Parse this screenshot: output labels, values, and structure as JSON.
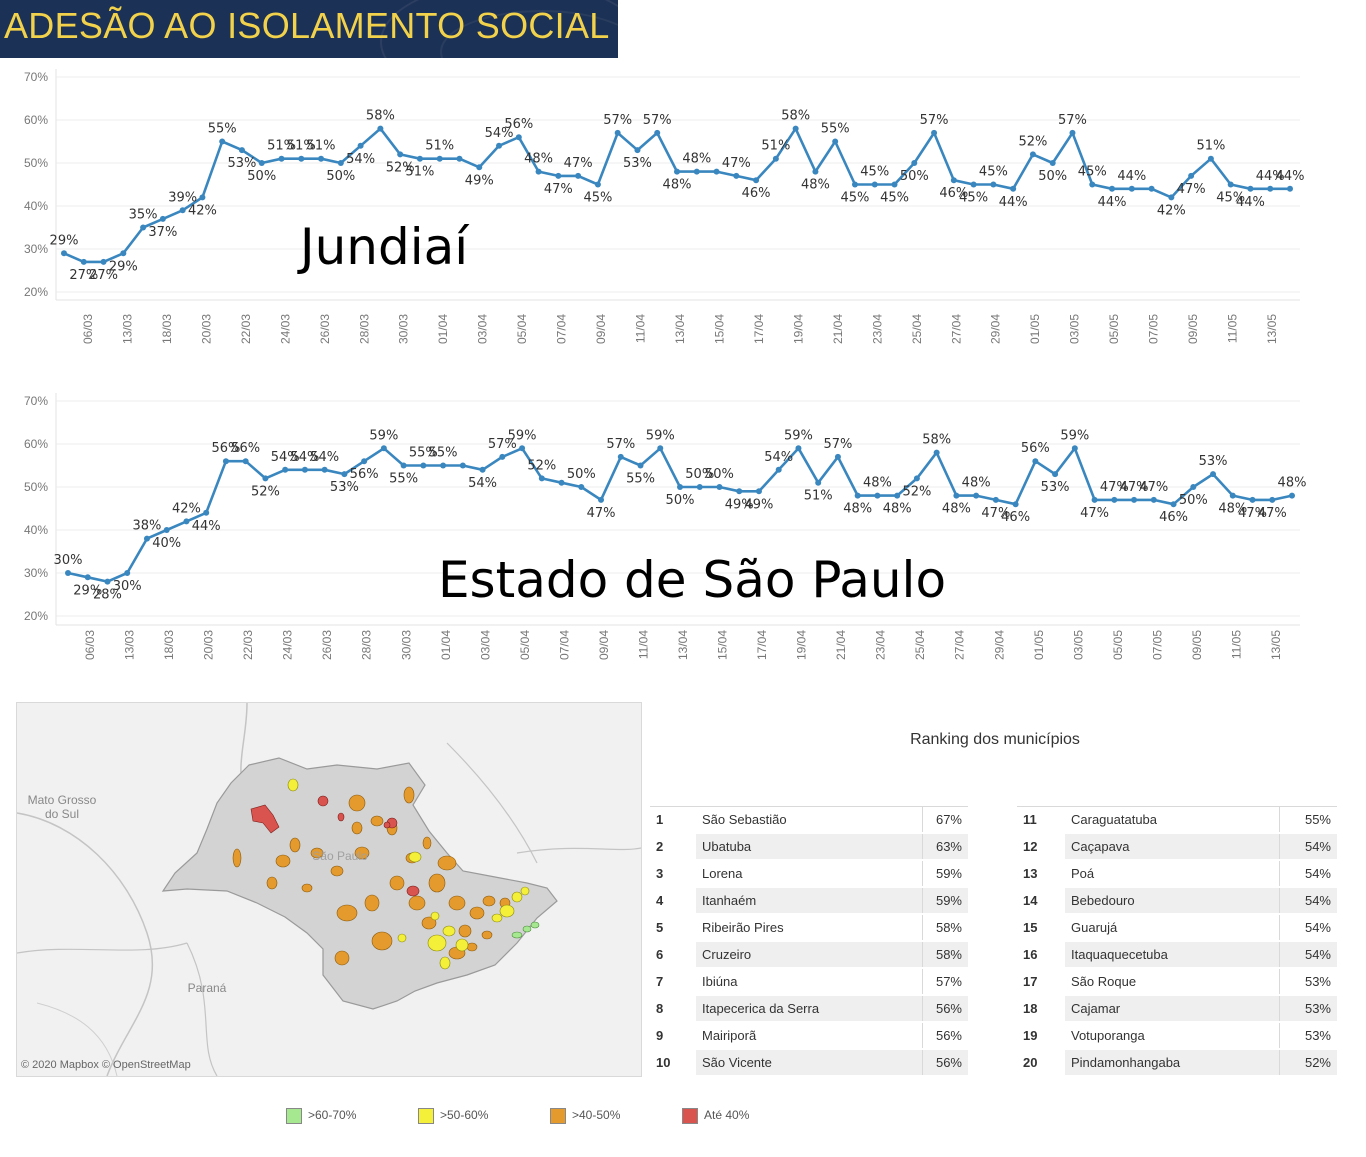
{
  "header": {
    "title": "ADESÃO AO ISOLAMENTO SOCIAL"
  },
  "colors": {
    "line": "#3a87bf",
    "header_bg": "#1c3156",
    "header_text": "#f2d24b"
  },
  "chart_data": [
    {
      "type": "line",
      "title": "Jundiaí",
      "ylim": [
        20,
        70
      ],
      "yticks": [
        "70%",
        "60%",
        "50%",
        "40%",
        "30%",
        "20%"
      ],
      "grid": true,
      "xtick_labels": [
        "06/03",
        "13/03",
        "18/03",
        "20/03",
        "22/03",
        "24/03",
        "26/03",
        "28/03",
        "30/03",
        "01/04",
        "03/04",
        "05/04",
        "07/04",
        "09/04",
        "11/04",
        "13/04",
        "15/04",
        "17/04",
        "19/04",
        "21/04",
        "23/04",
        "25/04",
        "27/04",
        "29/04",
        "01/05",
        "03/05",
        "05/05",
        "07/05",
        "09/05",
        "11/05",
        "13/05"
      ],
      "values": [
        29,
        27,
        27,
        29,
        35,
        37,
        39,
        42,
        55,
        53,
        50,
        51,
        51,
        51,
        50,
        54,
        58,
        52,
        51,
        51,
        51,
        49,
        54,
        56,
        48,
        47,
        47,
        45,
        57,
        53,
        57,
        48,
        48,
        48,
        47,
        46,
        51,
        58,
        48,
        55,
        45,
        45,
        45,
        50,
        57,
        46,
        45,
        45,
        44,
        52,
        50,
        57,
        45,
        44,
        44,
        44,
        42,
        47,
        51,
        45,
        44,
        44,
        44
      ],
      "labels": [
        "29%",
        "27%",
        "27%",
        "29%",
        "35%",
        "37%",
        "39%",
        "42%",
        "55%",
        "53%",
        "50%",
        "51%",
        "51%",
        "51%",
        "50%",
        "54%",
        "58%",
        "52%",
        "51%",
        "51%",
        "",
        "49%",
        "54%",
        "56%",
        "48%",
        "47%",
        "47%",
        "45%",
        "57%",
        "53%",
        "57%",
        "48%",
        "48%",
        "",
        "47%",
        "46%",
        "51%",
        "58%",
        "48%",
        "55%",
        "45%",
        "45%",
        "45%",
        "50%",
        "57%",
        "46%",
        "45%",
        "45%",
        "44%",
        "52%",
        "50%",
        "57%",
        "45%",
        "44%",
        "44%",
        "",
        "42%",
        "47%",
        "51%",
        "45%",
        "44%",
        "44%",
        "44%"
      ]
    },
    {
      "type": "line",
      "title": "Estado de São Paulo",
      "ylim": [
        20,
        70
      ],
      "yticks": [
        "70%",
        "60%",
        "50%",
        "40%",
        "30%",
        "20%"
      ],
      "grid": true,
      "xtick_labels": [
        "06/03",
        "13/03",
        "18/03",
        "20/03",
        "22/03",
        "24/03",
        "26/03",
        "28/03",
        "30/03",
        "01/04",
        "03/04",
        "05/04",
        "07/04",
        "09/04",
        "11/04",
        "13/04",
        "15/04",
        "17/04",
        "19/04",
        "21/04",
        "23/04",
        "25/04",
        "27/04",
        "29/04",
        "01/05",
        "03/05",
        "05/05",
        "07/05",
        "09/05",
        "11/05",
        "13/05"
      ],
      "values": [
        30,
        29,
        28,
        30,
        38,
        40,
        42,
        44,
        56,
        56,
        52,
        54,
        54,
        54,
        53,
        56,
        59,
        55,
        55,
        55,
        55,
        54,
        57,
        59,
        52,
        51,
        50,
        47,
        57,
        55,
        59,
        50,
        50,
        50,
        49,
        49,
        54,
        59,
        51,
        57,
        48,
        48,
        48,
        52,
        58,
        48,
        48,
        47,
        46,
        56,
        53,
        59,
        47,
        47,
        47,
        47,
        46,
        50,
        53,
        48,
        47,
        47,
        48
      ],
      "labels": [
        "30%",
        "29%",
        "28%",
        "30%",
        "38%",
        "40%",
        "42%",
        "44%",
        "56%",
        "56%",
        "52%",
        "54%",
        "54%",
        "54%",
        "53%",
        "56%",
        "59%",
        "55%",
        "55%",
        "55%",
        "",
        "54%",
        "57%",
        "59%",
        "52%",
        "",
        "50%",
        "47%",
        "57%",
        "55%",
        "59%",
        "50%",
        "50%",
        "50%",
        "49%",
        "49%",
        "54%",
        "59%",
        "51%",
        "57%",
        "48%",
        "48%",
        "48%",
        "52%",
        "58%",
        "48%",
        "48%",
        "47%",
        "46%",
        "56%",
        "53%",
        "59%",
        "47%",
        "47%",
        "47%",
        "47%",
        "46%",
        "50%",
        "53%",
        "48%",
        "47%",
        "47%",
        "48%"
      ]
    }
  ],
  "map": {
    "labels": {
      "mato_grosso": "Mato Grosso\ndo Sul",
      "sao_paulo": "São Paulo",
      "parana": "Paraná"
    },
    "attribution": "© 2020 Mapbox © OpenStreetMap"
  },
  "ranking": {
    "title": "Ranking dos municípios",
    "left": [
      {
        "rank": "1",
        "name": "São Sebastião",
        "pct": "67%"
      },
      {
        "rank": "2",
        "name": "Ubatuba",
        "pct": "63%"
      },
      {
        "rank": "3",
        "name": "Lorena",
        "pct": "59%"
      },
      {
        "rank": "4",
        "name": "Itanhaém",
        "pct": "59%"
      },
      {
        "rank": "5",
        "name": "Ribeirão Pires",
        "pct": "58%"
      },
      {
        "rank": "6",
        "name": "Cruzeiro",
        "pct": "58%"
      },
      {
        "rank": "7",
        "name": "Ibiúna",
        "pct": "57%"
      },
      {
        "rank": "8",
        "name": "Itapecerica da Serra",
        "pct": "56%"
      },
      {
        "rank": "9",
        "name": "Mairiporã",
        "pct": "56%"
      },
      {
        "rank": "10",
        "name": "São Vicente",
        "pct": "56%"
      }
    ],
    "right": [
      {
        "rank": "11",
        "name": "Caraguatatuba",
        "pct": "55%"
      },
      {
        "rank": "12",
        "name": "Caçapava",
        "pct": "54%"
      },
      {
        "rank": "13",
        "name": "Poá",
        "pct": "54%"
      },
      {
        "rank": "14",
        "name": "Bebedouro",
        "pct": "54%"
      },
      {
        "rank": "15",
        "name": "Guarujá",
        "pct": "54%"
      },
      {
        "rank": "16",
        "name": "Itaquaquecetuba",
        "pct": "54%"
      },
      {
        "rank": "17",
        "name": "São Roque",
        "pct": "53%"
      },
      {
        "rank": "18",
        "name": "Cajamar",
        "pct": "53%"
      },
      {
        "rank": "19",
        "name": "Votuporanga",
        "pct": "53%"
      },
      {
        "rank": "20",
        "name": "Pindamonhangaba",
        "pct": "52%"
      }
    ]
  },
  "legend": [
    {
      "label": ">60-70%",
      "color": "#a6e890"
    },
    {
      "label": ">50-60%",
      "color": "#f4f03a"
    },
    {
      "label": ">40-50%",
      "color": "#e49a2c"
    },
    {
      "label": "Até 40%",
      "color": "#d9534f"
    }
  ]
}
